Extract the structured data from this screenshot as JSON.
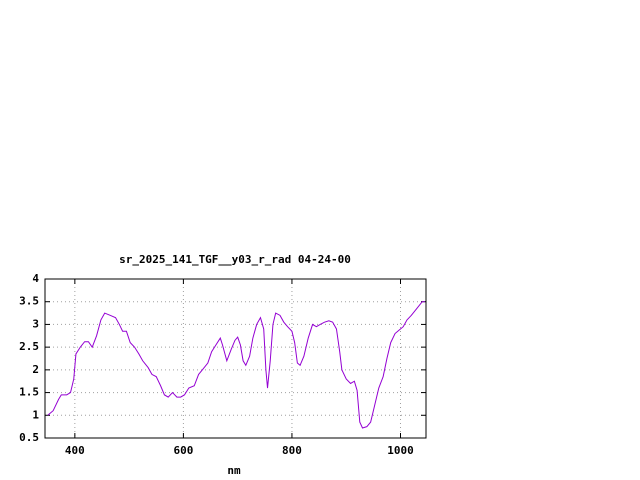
{
  "chart_data": {
    "type": "line",
    "title": "sr_2025_141_TGF__y03_r_rad 04-24-00",
    "x_label": "nm",
    "x": [
      350,
      360,
      370,
      375,
      385,
      392,
      398,
      402,
      410,
      418,
      425,
      432,
      440,
      448,
      455,
      465,
      475,
      482,
      488,
      495,
      502,
      510,
      518,
      525,
      535,
      542,
      550,
      558,
      565,
      572,
      580,
      588,
      595,
      602,
      610,
      620,
      628,
      635,
      645,
      652,
      660,
      668,
      672,
      680,
      688,
      695,
      700,
      705,
      710,
      715,
      722,
      728,
      735,
      742,
      748,
      752,
      755,
      760,
      765,
      770,
      778,
      785,
      792,
      800,
      805,
      810,
      815,
      822,
      830,
      838,
      845,
      852,
      860,
      868,
      875,
      882,
      888,
      892,
      900,
      908,
      915,
      920,
      925,
      930,
      938,
      945,
      952,
      960,
      968,
      975,
      982,
      990,
      998,
      1005,
      1012,
      1020,
      1030,
      1040,
      1045
    ],
    "series": [
      {
        "color": "#9400d3",
        "values": [
          1.0,
          1.1,
          1.35,
          1.45,
          1.45,
          1.5,
          1.8,
          2.35,
          2.5,
          2.62,
          2.62,
          2.5,
          2.75,
          3.1,
          3.25,
          3.2,
          3.15,
          3.0,
          2.85,
          2.85,
          2.6,
          2.5,
          2.35,
          2.2,
          2.05,
          1.9,
          1.85,
          1.65,
          1.45,
          1.4,
          1.5,
          1.4,
          1.4,
          1.45,
          1.6,
          1.65,
          1.9,
          2.0,
          2.15,
          2.4,
          2.55,
          2.7,
          2.55,
          2.2,
          2.45,
          2.65,
          2.72,
          2.55,
          2.2,
          2.1,
          2.3,
          2.7,
          3.0,
          3.15,
          2.9,
          2.0,
          1.6,
          2.2,
          3.0,
          3.25,
          3.2,
          3.05,
          2.95,
          2.85,
          2.6,
          2.15,
          2.1,
          2.3,
          2.7,
          3.0,
          2.95,
          3.0,
          3.05,
          3.08,
          3.05,
          2.9,
          2.4,
          2.0,
          1.8,
          1.7,
          1.75,
          1.55,
          0.85,
          0.72,
          0.75,
          0.85,
          1.2,
          1.6,
          1.85,
          2.25,
          2.6,
          2.8,
          2.88,
          2.95,
          3.1,
          3.2,
          3.35,
          3.5,
          3.5
        ]
      }
    ],
    "xlim": [
      345,
      1047
    ],
    "xticks": [
      400,
      600,
      800,
      1000
    ],
    "ylim": [
      0.5,
      4
    ],
    "yticks": [
      0.5,
      1,
      1.5,
      2,
      2.5,
      3,
      3.5,
      4
    ],
    "grid": true
  }
}
